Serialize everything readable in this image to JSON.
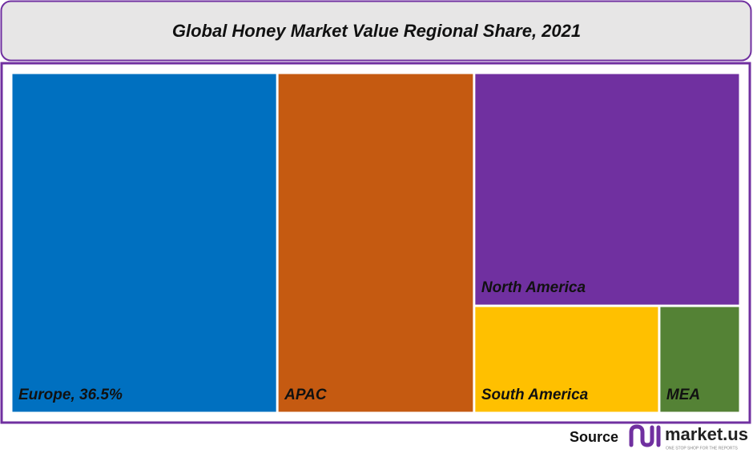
{
  "chart_data": {
    "type": "treemap",
    "title": "Global Honey Market Value Regional Share, 2021",
    "categories": [
      "Europe, 36.5%",
      "APAC",
      "North America",
      "South America",
      "MEA"
    ],
    "values": [
      36.5,
      27,
      25,
      8,
      3.5
    ],
    "colors": [
      "#0070c0",
      "#c55a11",
      "#7030a0",
      "#ffc000",
      "#548235"
    ]
  },
  "footer": {
    "source": "Source",
    "brand": "market.us",
    "tagline": "ONE STOP SHOP FOR THE REPORTS"
  }
}
